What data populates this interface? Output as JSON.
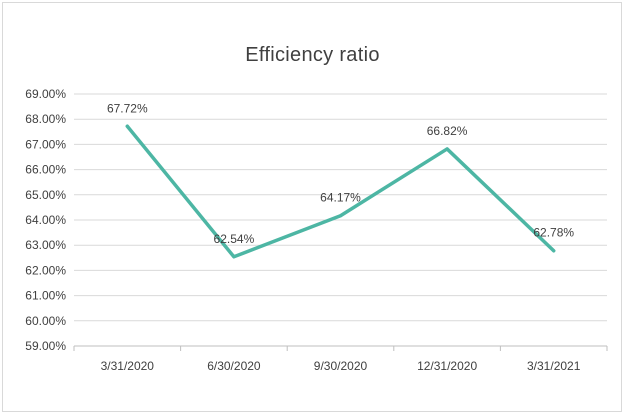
{
  "chart_data": {
    "type": "line",
    "title": "Efficiency ratio",
    "xlabel": "",
    "ylabel": "",
    "categories": [
      "3/31/2020",
      "6/30/2020",
      "9/30/2020",
      "12/31/2020",
      "3/31/2021"
    ],
    "series": [
      {
        "values": [
          67.72,
          62.54,
          64.17,
          66.82,
          62.78
        ],
        "labels": [
          "67.72%",
          "62.54%",
          "64.17%",
          "66.82%",
          "62.78%"
        ],
        "color": "#4db6a4"
      }
    ],
    "ylim": [
      59,
      69
    ],
    "yticks": [
      59,
      60,
      61,
      62,
      63,
      64,
      65,
      66,
      67,
      68,
      69
    ],
    "ytick_labels": [
      "59.00%",
      "60.00%",
      "61.00%",
      "62.00%",
      "63.00%",
      "64.00%",
      "65.00%",
      "66.00%",
      "67.00%",
      "68.00%",
      "69.00%"
    ],
    "grid": true,
    "legend": "none"
  }
}
